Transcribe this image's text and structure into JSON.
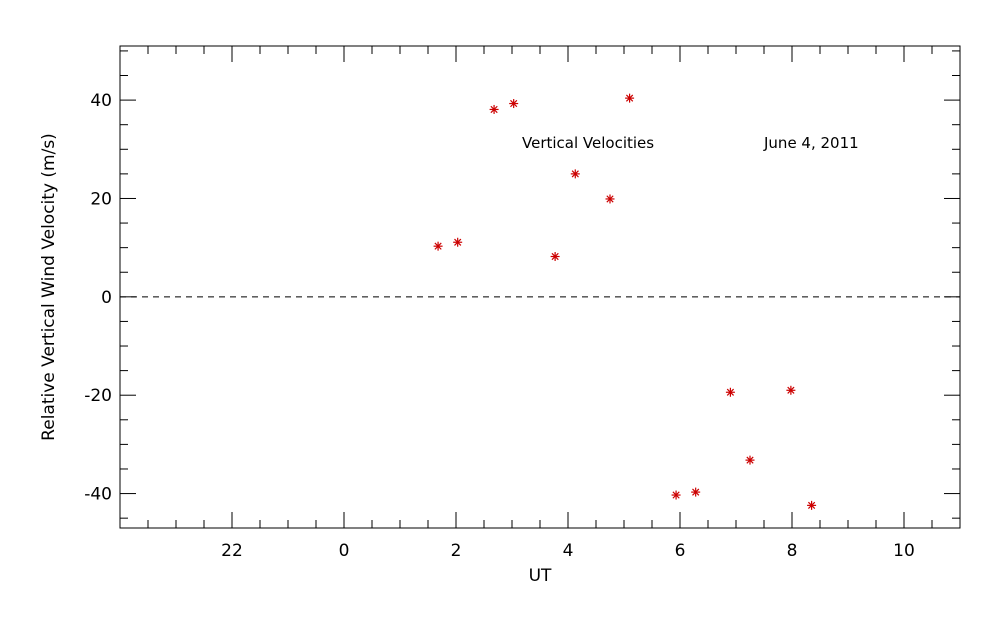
{
  "chart_data": {
    "type": "scatter",
    "xlabel": "UT",
    "ylabel": "Relative Vertical Wind Velocity (m/s)",
    "annotations": [
      "Vertical Velocities",
      "June 4, 2011"
    ],
    "x_axis": {
      "range": [
        -1,
        14
      ],
      "major_ticks": [
        {
          "v": 1,
          "label": "22"
        },
        {
          "v": 3,
          "label": "0"
        },
        {
          "v": 5,
          "label": "2"
        },
        {
          "v": 7,
          "label": "4"
        },
        {
          "v": 9,
          "label": "6"
        },
        {
          "v": 11,
          "label": "8"
        },
        {
          "v": 13,
          "label": "10"
        }
      ],
      "minor_ticks": [
        -0.5,
        0,
        0.5,
        1.5,
        2,
        2.5,
        3.5,
        4,
        4.5,
        5.5,
        6,
        6.5,
        7.5,
        8,
        8.5,
        9.5,
        10,
        10.5,
        11.5,
        12,
        12.5,
        13.5
      ]
    },
    "y_axis": {
      "range": [
        -47,
        51
      ],
      "major_ticks": [
        {
          "v": -40,
          "label": "-40"
        },
        {
          "v": -20,
          "label": "-20"
        },
        {
          "v": 0,
          "label": "0"
        },
        {
          "v": 20,
          "label": "20"
        },
        {
          "v": 40,
          "label": "40"
        }
      ],
      "minor_ticks": [
        -45,
        -35,
        -30,
        -25,
        -15,
        -10,
        -5,
        5,
        10,
        15,
        25,
        30,
        35,
        45,
        50
      ]
    },
    "reference_line": {
      "y": 0,
      "style": "dashed"
    },
    "marker_color": "#cc0000",
    "points": [
      {
        "x": 1.68,
        "y": 10.3
      },
      {
        "x": 2.03,
        "y": 11.1
      },
      {
        "x": 2.68,
        "y": 38.1
      },
      {
        "x": 3.03,
        "y": 39.3
      },
      {
        "x": 3.77,
        "y": 8.2
      },
      {
        "x": 4.13,
        "y": 25.0
      },
      {
        "x": 4.75,
        "y": 19.9
      },
      {
        "x": 5.1,
        "y": 40.4
      },
      {
        "x": 5.93,
        "y": -40.3
      },
      {
        "x": 6.28,
        "y": -39.7
      },
      {
        "x": 6.9,
        "y": -19.4
      },
      {
        "x": 7.25,
        "y": -33.2
      },
      {
        "x": 7.98,
        "y": -19.0
      },
      {
        "x": 8.35,
        "y": -42.4
      }
    ]
  }
}
